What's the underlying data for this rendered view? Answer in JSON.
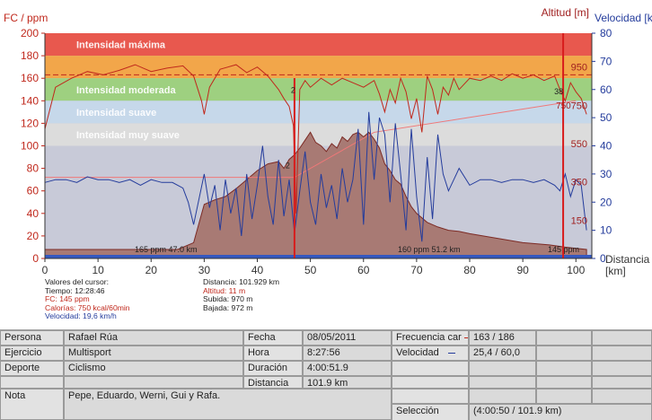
{
  "chart": {
    "left_axis_title": "FC / ppm",
    "right_axis_title_alt": "Altitud [m]",
    "right_axis_title_vel": "Velocidad [k",
    "x_axis_title": "Distancia",
    "x_axis_unit": "[km]",
    "zones": [
      {
        "label": "Intensidad máxima",
        "from": 180,
        "to": 200,
        "color": "#e8584e"
      },
      {
        "label": "",
        "from": 160,
        "to": 180,
        "color": "#f2a64a"
      },
      {
        "label": "Intensidad moderada",
        "from": 140,
        "to": 160,
        "color": "#9ed080"
      },
      {
        "label": "Intensidad suave",
        "from": 120,
        "to": 140,
        "color": "#c6d8ea"
      },
      {
        "label": "Intensidad muy suave",
        "from": 100,
        "to": 120,
        "color": "#dcdcdc"
      }
    ],
    "plot_background": "#c8cad8",
    "hr_color": "#c0281c",
    "speed_color": "#243c9c",
    "altitude_fill": "#a87a74",
    "cursor_color": "#d81c1c",
    "marker_labels": {
      "lap_a": "165 ppm 47.0 km",
      "lap_b": "160 ppm 51.2 km",
      "lap_c": "145 ppm",
      "point_38": "38",
      "point_750": "750"
    }
  },
  "chart_data": {
    "type": "line",
    "xlim": [
      0,
      103
    ],
    "x_ticks": [
      0,
      10,
      20,
      30,
      40,
      50,
      60,
      70,
      80,
      90,
      100
    ],
    "left_axis": {
      "ylim": [
        0,
        200
      ],
      "ticks": [
        0,
        20,
        40,
        60,
        80,
        100,
        120,
        140,
        160,
        180,
        200
      ]
    },
    "right_axis_speed": {
      "ylim": [
        0,
        80
      ],
      "ticks": [
        0,
        10,
        20,
        30,
        40,
        50,
        60,
        70,
        80
      ]
    },
    "right_axis_altitude_ticks": [
      {
        "label": "150",
        "hr_equiv": 34
      },
      {
        "label": "350",
        "hr_equiv": 68
      },
      {
        "label": "550",
        "hr_equiv": 102
      },
      {
        "label": "750",
        "hr_equiv": 136
      },
      {
        "label": "950",
        "hr_equiv": 170
      }
    ],
    "hr_avg_line": 163,
    "grid": false,
    "series": [
      {
        "name": "FC",
        "axis": "left",
        "x": [
          0,
          2,
          5,
          8,
          11,
          14,
          17,
          20,
          23,
          26,
          28,
          29.5,
          30,
          31,
          33,
          36,
          38,
          40,
          42,
          44,
          45,
          46,
          46.8,
          47.3,
          48,
          49,
          50,
          52,
          54,
          56,
          58,
          60,
          62,
          63,
          64,
          65,
          66,
          67,
          68,
          69,
          70,
          71,
          72,
          73,
          74,
          75,
          76,
          77,
          78,
          80,
          82,
          84,
          86,
          88,
          90,
          92,
          94,
          96,
          97,
          98,
          99,
          100,
          101,
          102
        ],
        "values": [
          115,
          152,
          160,
          166,
          163,
          167,
          172,
          166,
          169,
          171,
          162,
          140,
          128,
          152,
          168,
          172,
          165,
          170,
          162,
          150,
          142,
          135,
          118,
          40,
          150,
          158,
          152,
          160,
          154,
          160,
          156,
          152,
          158,
          146,
          130,
          150,
          138,
          160,
          148,
          124,
          142,
          112,
          162,
          150,
          128,
          152,
          145,
          160,
          150,
          160,
          158,
          162,
          158,
          164,
          160,
          163,
          158,
          162,
          150,
          140,
          156,
          148,
          142,
          128
        ]
      },
      {
        "name": "Velocidad",
        "axis": "right",
        "x": [
          0,
          2,
          4,
          6,
          8,
          10,
          12,
          14,
          16,
          18,
          20,
          22,
          24,
          26,
          27,
          28,
          30,
          31,
          32,
          33,
          34,
          35,
          36,
          37,
          38,
          39,
          40,
          41,
          42,
          43,
          44,
          45,
          46,
          47,
          48,
          49,
          50,
          51,
          52,
          53,
          54,
          55,
          56,
          57,
          58,
          59,
          60,
          61,
          62,
          63,
          64,
          65,
          66,
          67,
          68,
          69,
          70,
          71,
          72,
          73,
          74,
          75,
          76,
          77,
          78,
          80,
          82,
          84,
          86,
          88,
          90,
          92,
          94,
          96,
          97,
          98,
          99,
          100,
          101,
          102
        ],
        "values": [
          27,
          28,
          28,
          27,
          29,
          28,
          28,
          27,
          28,
          26,
          28,
          27,
          27,
          25,
          20,
          12,
          30,
          18,
          26,
          10,
          28,
          16,
          25,
          8,
          30,
          14,
          26,
          40,
          22,
          12,
          35,
          15,
          28,
          9,
          24,
          38,
          20,
          12,
          30,
          18,
          26,
          14,
          32,
          20,
          28,
          46,
          12,
          52,
          28,
          50,
          44,
          20,
          48,
          30,
          10,
          46,
          22,
          6,
          36,
          14,
          44,
          30,
          24,
          28,
          32,
          26,
          28,
          28,
          27,
          28,
          28,
          27,
          28,
          26,
          24,
          30,
          22,
          28,
          26,
          10
        ]
      },
      {
        "name": "Altitud",
        "axis": "altitude",
        "x": [
          0,
          5,
          10,
          15,
          20,
          25,
          28,
          30,
          32,
          34,
          36,
          38,
          40,
          42,
          44,
          45,
          46,
          47,
          48,
          49,
          50,
          51,
          52,
          53,
          54,
          55,
          56,
          57,
          58,
          59,
          60,
          61,
          62,
          63,
          64,
          65,
          66,
          67,
          68,
          69,
          70,
          72,
          74,
          76,
          78,
          80,
          85,
          90,
          95,
          98,
          100,
          102
        ],
        "hr_equiv": [
          8,
          8,
          8,
          8,
          8,
          8,
          14,
          48,
          52,
          55,
          62,
          70,
          78,
          84,
          86,
          80,
          88,
          92,
          98,
          105,
          112,
          103,
          100,
          95,
          102,
          98,
          108,
          104,
          110,
          112,
          108,
          112,
          106,
          98,
          84,
          78,
          70,
          66,
          55,
          46,
          40,
          32,
          28,
          25,
          24,
          22,
          18,
          14,
          12,
          10,
          9,
          8
        ]
      }
    ]
  },
  "cursor": {
    "title": "Valores del cursor:",
    "tiempo": "Tiempo: 12:28:46",
    "fc": "FC: 145 ppm",
    "calorias": "Calorías: 750 kcal/60min",
    "velocidad": "Velocidad: 19,6 km/h",
    "distancia": "Distancia: 101.929 km",
    "altitud": "Altitud: 11 m",
    "subida": "Subida: 970 m",
    "bajada": "Bajada: 972 m"
  },
  "summary": {
    "persona_label": "Persona",
    "persona_value": "Rafael Rúa",
    "ejercicio_label": "Ejercicio",
    "ejercicio_value": "Multisport",
    "deporte_label": "Deporte",
    "deporte_value": "Ciclismo",
    "nota_label": "Nota",
    "nota_value": "Pepe, Eduardo, Werni, Gui y Rafa.",
    "fecha_label": "Fecha",
    "fecha_value": "08/05/2011",
    "hora_label": "Hora",
    "hora_value": "8:27:56",
    "duracion_label": "Duración",
    "duracion_value": "4:00:51.9",
    "distancia_label": "Distancia",
    "distancia_value": "101.9 km",
    "frecuencia_label": "Frecuencia car",
    "frecuencia_value": "163 / 186",
    "velocidad_label": "Velocidad",
    "velocidad_value": "25,4 / 60,0",
    "seleccion_label": "Selección",
    "seleccion_value": "(4:00:50 / 101.9 km)"
  }
}
